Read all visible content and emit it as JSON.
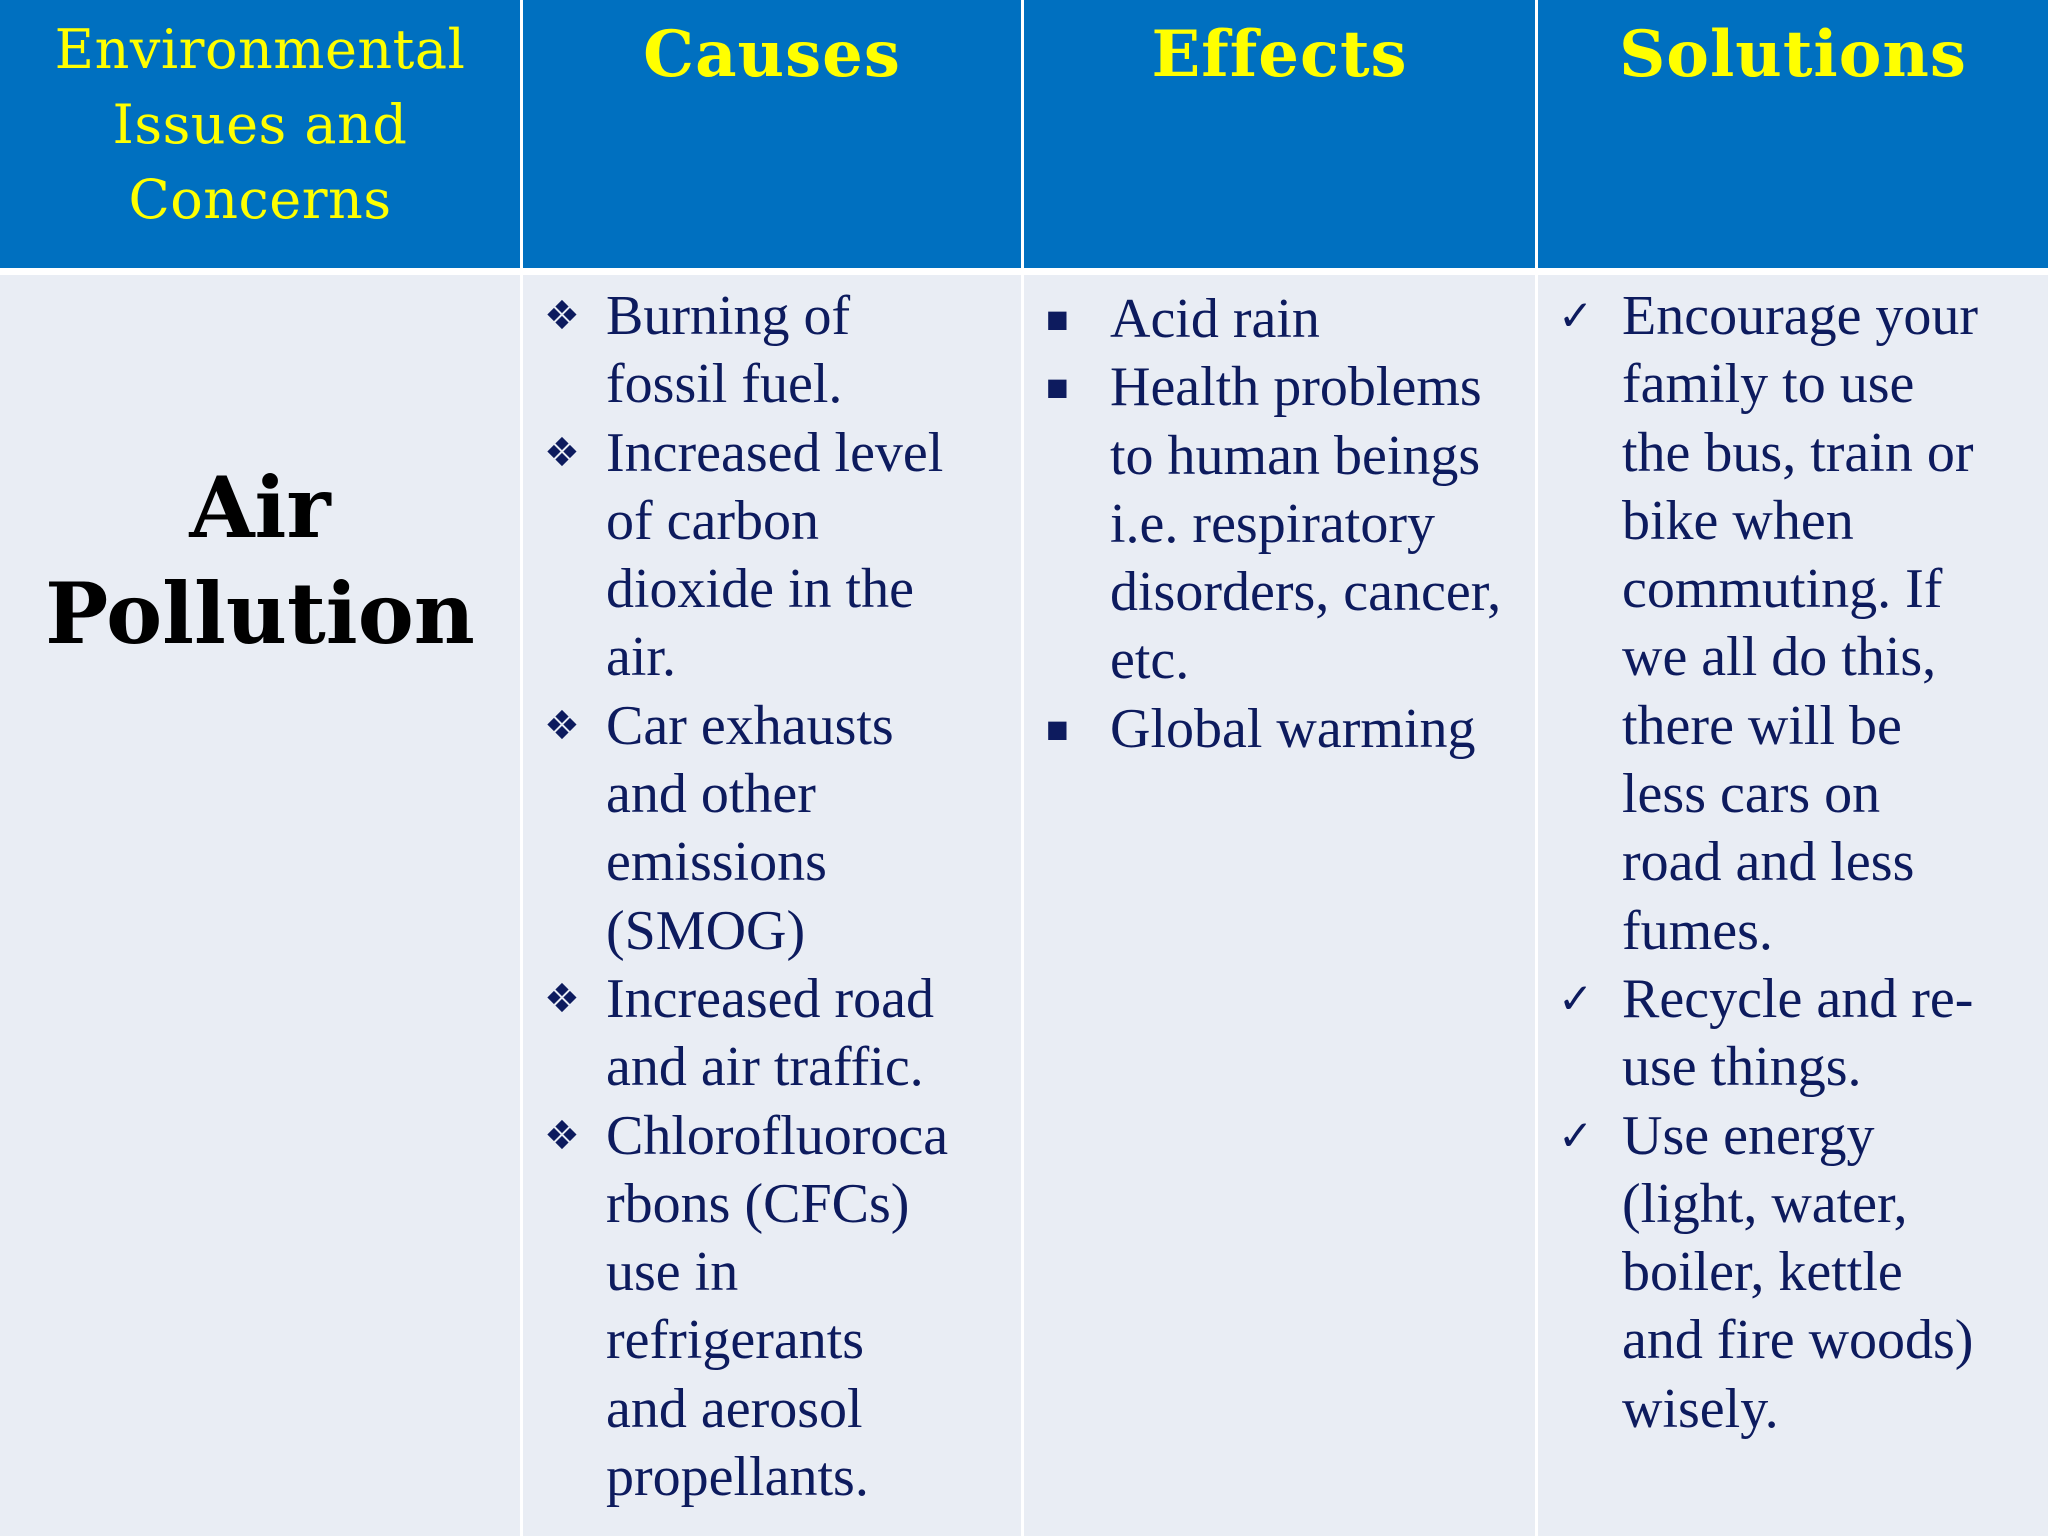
{
  "header": {
    "issue": "Environmental Issues and Concerns",
    "causes": "Causes",
    "effects": "Effects",
    "solutions": "Solutions"
  },
  "row": {
    "issue": "Air Pollution",
    "causes": [
      "Burning of fossil fuel.",
      "Increased level of carbon dioxide in the air.",
      "Car exhausts and other emissions (SMOG)",
      "Increased road and air traffic.",
      "Chlorofluorocarbons (CFCs) use in refrigerants and aerosol propellants."
    ],
    "effects": [
      "Acid rain",
      "Health problems to human beings i.e. respiratory disorders, cancer, etc.",
      "Global warming"
    ],
    "solutions": [
      "Encourage your family to use the bus, train or bike when commuting. If we all do this, there will be less cars on road and less fumes.",
      "Recycle and re-use things.",
      "Use energy (light, water, boiler, kettle and fire woods) wisely."
    ]
  },
  "markers": {
    "causes": "diamond-bullet-icon",
    "effects": "square-bullet-icon",
    "solutions": "checkmark-icon"
  },
  "colors": {
    "header_bg": "#0070c0",
    "header_text": "#ffff00",
    "body_bg": "#e9edf4",
    "body_text": "#0d1b5e",
    "issue_text": "#000000"
  }
}
